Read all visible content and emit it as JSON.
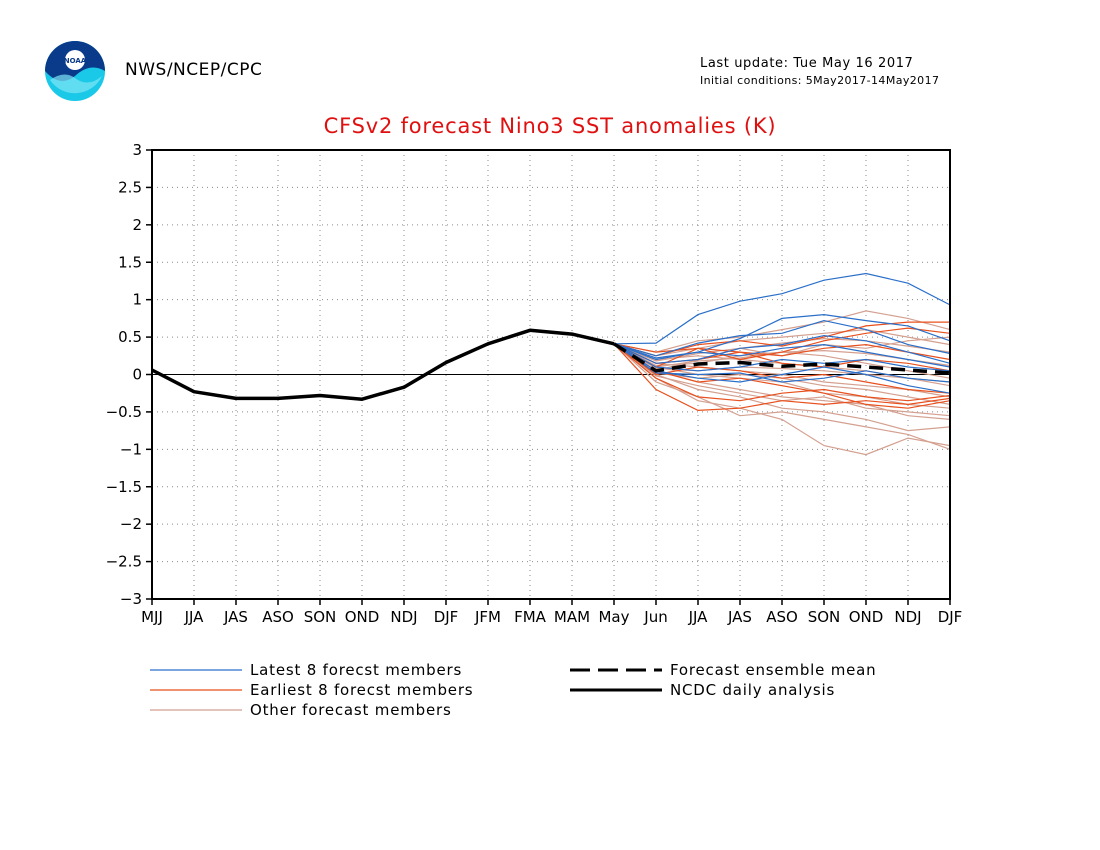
{
  "header": {
    "org": "NWS/NCEP/CPC",
    "last_update": "Last update: Tue May 16 2017",
    "initial_conditions": "Initial conditions: 5May2017-14May2017",
    "logo_text": "NOAA"
  },
  "colors": {
    "title": "#e01010",
    "latest": "#2a6fc9",
    "earliest": "#e8501e",
    "other": "#d4a090",
    "obs": "#000000"
  },
  "legend": {
    "latest": "Latest 8 forecst members",
    "earliest": "Earliest 8 forecst members",
    "other": "Other forecast members",
    "mean": "Forecast ensemble mean",
    "obs": "NCDC daily analysis"
  },
  "chart_data": {
    "type": "line",
    "title": "CFSv2 forecast Nino3 SST anomalies (K)",
    "xlabel": "",
    "ylabel": "",
    "categories": [
      "MJJ",
      "JJA",
      "JAS",
      "ASO",
      "SON",
      "OND",
      "NDJ",
      "DJF",
      "JFM",
      "FMA",
      "MAM",
      "May",
      "Jun",
      "JJA",
      "JAS",
      "ASO",
      "SON",
      "OND",
      "NDJ",
      "DJF"
    ],
    "ylim": [
      -3,
      3
    ],
    "yticks": [
      "3",
      "2.5",
      "2",
      "1.5",
      "1",
      "0.5",
      "0",
      "-0.5",
      "-1",
      "-1.5",
      "-2",
      "-2.5",
      "-3"
    ],
    "grid": true,
    "legend_position": "bottom",
    "observed": {
      "name": "NCDC daily analysis",
      "values": [
        0.06,
        -0.23,
        -0.32,
        -0.32,
        -0.28,
        -0.33,
        -0.17,
        0.16,
        0.41,
        0.59,
        0.54,
        0.41
      ]
    },
    "ensemble_mean": {
      "name": "Forecast ensemble mean",
      "values": [
        0.41,
        0.05,
        0.14,
        0.16,
        0.11,
        0.14,
        0.1,
        0.06,
        0.02
      ]
    },
    "forecast_members": {
      "start_index": 11,
      "latest": [
        [
          0.41,
          0.42,
          0.8,
          0.98,
          1.08,
          1.26,
          1.35,
          1.22,
          0.93
        ],
        [
          0.41,
          0.2,
          0.3,
          0.48,
          0.75,
          0.8,
          0.72,
          0.65,
          0.45
        ],
        [
          0.41,
          0.25,
          0.42,
          0.52,
          0.55,
          0.72,
          0.6,
          0.4,
          0.28
        ],
        [
          0.41,
          0.15,
          0.2,
          0.35,
          0.4,
          0.52,
          0.45,
          0.3,
          0.15
        ],
        [
          0.41,
          0.1,
          0.05,
          0.1,
          0.2,
          0.15,
          0.2,
          0.1,
          0.05
        ],
        [
          0.41,
          0.02,
          0.0,
          0.02,
          -0.1,
          -0.05,
          0.05,
          -0.05,
          -0.1
        ],
        [
          0.41,
          0.05,
          -0.05,
          -0.1,
          0.0,
          0.1,
          0.0,
          -0.15,
          -0.25
        ],
        [
          0.41,
          0.22,
          0.3,
          0.25,
          0.35,
          0.4,
          0.3,
          0.2,
          0.1
        ]
      ],
      "earliest": [
        [
          0.41,
          -0.2,
          -0.48,
          -0.45,
          -0.35,
          -0.4,
          -0.35,
          -0.4,
          -0.32
        ],
        [
          0.41,
          -0.05,
          -0.3,
          -0.35,
          -0.25,
          -0.2,
          -0.3,
          -0.35,
          -0.28
        ],
        [
          0.41,
          0.05,
          -0.1,
          -0.05,
          -0.15,
          -0.25,
          -0.4,
          -0.45,
          -0.35
        ],
        [
          0.41,
          0.1,
          0.35,
          0.3,
          0.15,
          0.1,
          0.2,
          0.15,
          0.05
        ],
        [
          0.41,
          0.25,
          0.4,
          0.45,
          0.38,
          0.5,
          0.65,
          0.7,
          0.7
        ],
        [
          0.41,
          0.3,
          0.35,
          0.2,
          0.3,
          0.45,
          0.55,
          0.62,
          0.55
        ],
        [
          0.41,
          0.15,
          0.2,
          0.3,
          0.25,
          0.35,
          0.4,
          0.3,
          0.2
        ],
        [
          0.41,
          0.0,
          0.1,
          0.05,
          -0.05,
          0.0,
          -0.1,
          -0.2,
          -0.25
        ]
      ],
      "other": [
        [
          0.41,
          -0.1,
          -0.3,
          -0.55,
          -0.5,
          -0.6,
          -0.7,
          -0.8,
          -1.0
        ],
        [
          0.41,
          -0.05,
          -0.35,
          -0.45,
          -0.6,
          -0.95,
          -1.07,
          -0.85,
          -0.95
        ],
        [
          0.41,
          0.0,
          -0.2,
          -0.3,
          -0.45,
          -0.5,
          -0.6,
          -0.75,
          -0.7
        ],
        [
          0.41,
          0.05,
          -0.1,
          -0.2,
          -0.3,
          -0.35,
          -0.4,
          -0.55,
          -0.6
        ],
        [
          0.41,
          0.1,
          0.0,
          -0.05,
          -0.1,
          -0.25,
          -0.3,
          -0.4,
          -0.45
        ],
        [
          0.41,
          0.15,
          0.1,
          0.05,
          0.0,
          -0.1,
          -0.15,
          -0.2,
          -0.3
        ],
        [
          0.41,
          0.2,
          0.25,
          0.2,
          0.15,
          0.1,
          0.05,
          -0.05,
          -0.1
        ],
        [
          0.41,
          0.3,
          0.45,
          0.5,
          0.6,
          0.7,
          0.85,
          0.75,
          0.6
        ],
        [
          0.41,
          0.25,
          0.35,
          0.45,
          0.5,
          0.55,
          0.6,
          0.5,
          0.4
        ],
        [
          0.41,
          0.18,
          0.28,
          0.35,
          0.42,
          0.48,
          0.45,
          0.38,
          0.3
        ],
        [
          0.41,
          0.12,
          0.15,
          0.25,
          0.3,
          0.32,
          0.28,
          0.2,
          0.12
        ],
        [
          0.41,
          0.08,
          0.05,
          0.1,
          0.08,
          0.05,
          0.0,
          -0.05,
          -0.15
        ],
        [
          0.41,
          0.02,
          -0.05,
          0.0,
          -0.05,
          -0.15,
          -0.2,
          -0.3,
          -0.4
        ],
        [
          0.41,
          -0.02,
          -0.15,
          -0.25,
          -0.35,
          -0.3,
          -0.45,
          -0.5,
          -0.55
        ],
        [
          0.41,
          0.05,
          0.2,
          0.35,
          0.25,
          0.4,
          0.35,
          0.45,
          0.5
        ],
        [
          0.41,
          0.1,
          0.18,
          0.22,
          0.3,
          0.25,
          0.15,
          0.05,
          -0.05
        ]
      ]
    }
  }
}
